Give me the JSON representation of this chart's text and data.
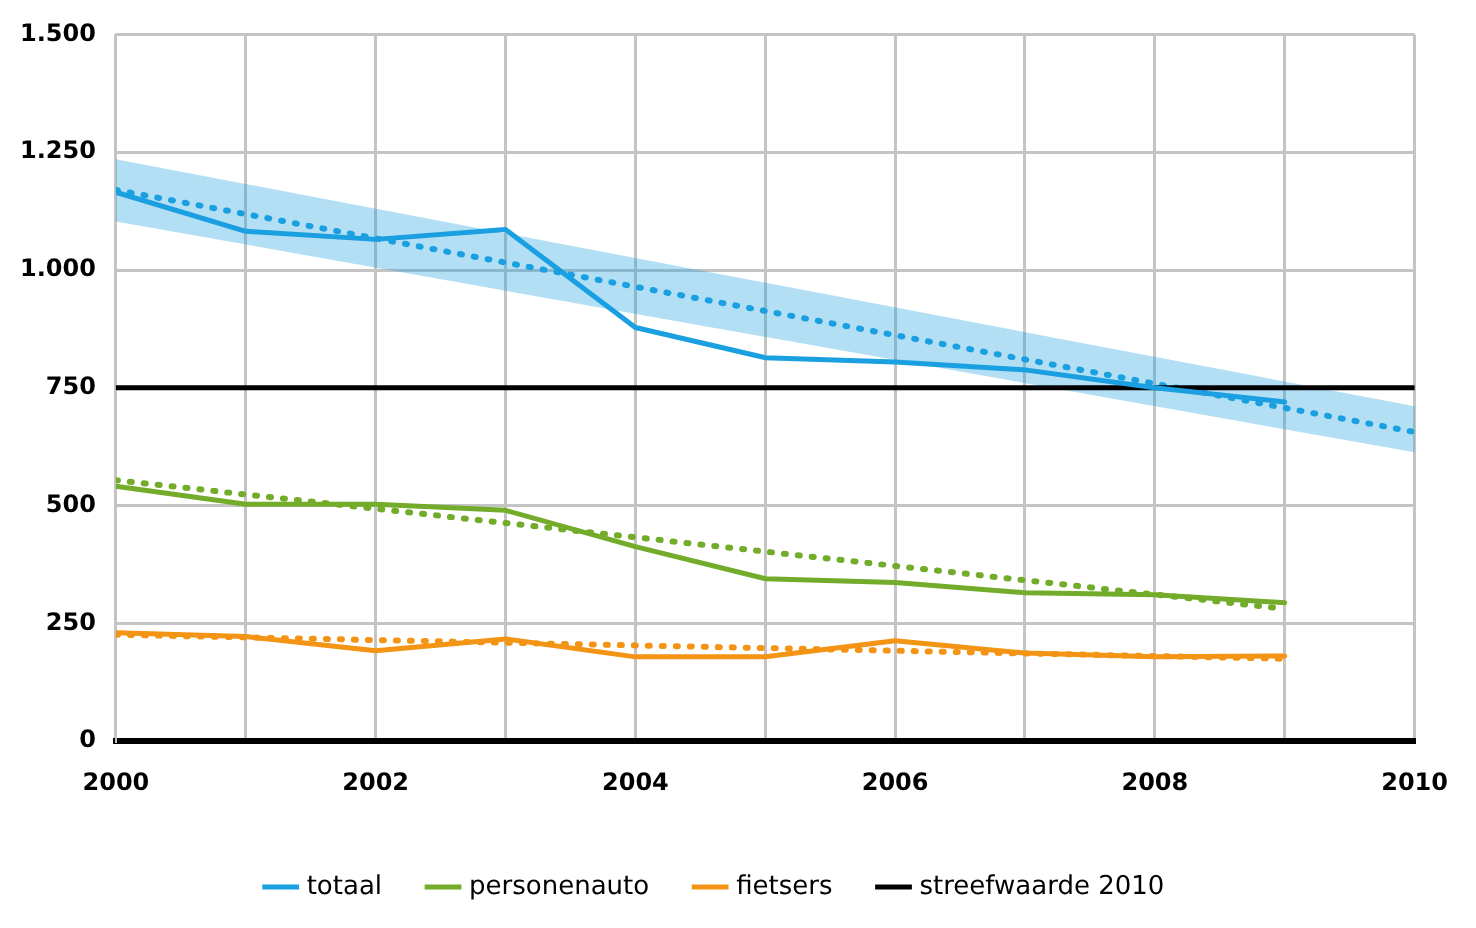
{
  "chart_data": {
    "type": "line",
    "x": [
      2000,
      2001,
      2002,
      2003,
      2004,
      2005,
      2006,
      2007,
      2008,
      2009
    ],
    "series": [
      {
        "name": "totaal",
        "color": "#1a9fe0",
        "values": [
          1165,
          1082,
          1065,
          1086,
          878,
          814,
          805,
          788,
          750,
          720
        ]
      },
      {
        "name": "personenauto",
        "color": "#72ac2a",
        "values": [
          541,
          503,
          503,
          490,
          413,
          345,
          337,
          315,
          311,
          294
        ]
      },
      {
        "name": "fietsers",
        "color": "#f39414",
        "values": [
          230,
          222,
          192,
          217,
          179,
          179,
          213,
          187,
          179,
          181
        ]
      },
      {
        "name": "streefwaarde 2010",
        "color": "#000000",
        "x": [
          2000,
          2010
        ],
        "values": [
          750,
          750
        ]
      },
      {
        "type": "line",
        "color": "#1a9fe0",
        "line_style": "dotted",
        "x": [
          2000,
          2010
        ],
        "values": [
          1170,
          656
        ],
        "lower": [
          1103,
          613
        ],
        "upper": [
          1235,
          711
        ]
      },
      {
        "type": "line",
        "color": "#72ac2a",
        "line_style": "dotted",
        "x": [
          2000,
          2009
        ],
        "values": [
          554,
          281
        ]
      },
      {
        "type": "line",
        "color": "#f39414",
        "line_style": "dotted",
        "x": [
          2000,
          2009
        ],
        "values": [
          226,
          175
        ]
      }
    ],
    "xlim": [
      2000,
      2010
    ],
    "xticks": [
      2000,
      {
        "value": 2001,
        "label": null
      },
      2002,
      {
        "value": 2003,
        "label": null
      },
      2004,
      {
        "value": 2005,
        "label": null
      },
      2006,
      {
        "value": 2007,
        "label": null
      },
      2008,
      {
        "value": 2009,
        "label": null
      },
      2010
    ],
    "ylim": [
      0,
      1500
    ],
    "yticks": [
      0,
      250,
      500,
      750,
      {
        "value": 1000,
        "label": "1.000"
      },
      {
        "value": 1250,
        "label": "1.250"
      },
      {
        "value": 1500,
        "label": "1.500"
      }
    ],
    "grid": true,
    "legend": "bottom",
    "marker": "none",
    "line_style": "solid"
  }
}
